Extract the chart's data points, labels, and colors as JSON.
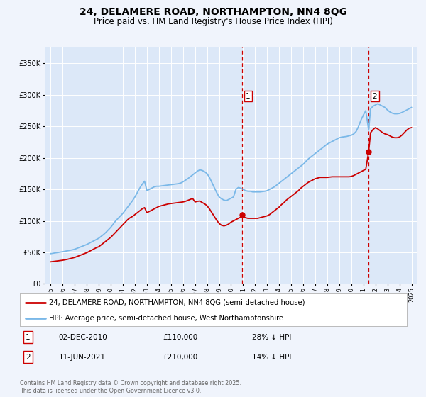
{
  "title": "24, DELAMERE ROAD, NORTHAMPTON, NN4 8QG",
  "subtitle": "Price paid vs. HM Land Registry's House Price Index (HPI)",
  "background_color": "#f0f4fc",
  "plot_bg_color": "#dce8f8",
  "legend_line1": "24, DELAMERE ROAD, NORTHAMPTON, NN4 8QG (semi-detached house)",
  "legend_line2": "HPI: Average price, semi-detached house, West Northamptonshire",
  "footer": "Contains HM Land Registry data © Crown copyright and database right 2025.\nThis data is licensed under the Open Government Licence v3.0.",
  "sale1_date": "02-DEC-2010",
  "sale1_price": "£110,000",
  "sale1_note": "28% ↓ HPI",
  "sale2_date": "11-JUN-2021",
  "sale2_price": "£210,000",
  "sale2_note": "14% ↓ HPI",
  "sale1_x": 2010.92,
  "sale1_y": 110000,
  "sale2_x": 2021.44,
  "sale2_y": 210000,
  "hpi_color": "#7ab8e8",
  "price_color": "#cc0000",
  "vline_color": "#cc0000",
  "ylim": [
    0,
    375000
  ],
  "xlim": [
    1994.5,
    2025.5
  ],
  "yticks": [
    0,
    50000,
    100000,
    150000,
    200000,
    250000,
    300000,
    350000
  ],
  "ytick_labels": [
    "£0",
    "£50K",
    "£100K",
    "£150K",
    "£200K",
    "£250K",
    "£300K",
    "£350K"
  ],
  "xticks": [
    1995,
    1996,
    1997,
    1998,
    1999,
    2000,
    2001,
    2002,
    2003,
    2004,
    2005,
    2006,
    2007,
    2008,
    2009,
    2010,
    2011,
    2012,
    2013,
    2014,
    2015,
    2016,
    2017,
    2018,
    2019,
    2020,
    2021,
    2022,
    2023,
    2024,
    2025
  ],
  "hpi_data": [
    [
      1995.0,
      48000
    ],
    [
      1995.1,
      48300
    ],
    [
      1995.2,
      48600
    ],
    [
      1995.3,
      49000
    ],
    [
      1995.4,
      49300
    ],
    [
      1995.5,
      49600
    ],
    [
      1995.6,
      49900
    ],
    [
      1995.7,
      50100
    ],
    [
      1995.8,
      50400
    ],
    [
      1995.9,
      50700
    ],
    [
      1996.0,
      51000
    ],
    [
      1996.2,
      51800
    ],
    [
      1996.4,
      52500
    ],
    [
      1996.6,
      53200
    ],
    [
      1996.8,
      54000
    ],
    [
      1997.0,
      55000
    ],
    [
      1997.2,
      56500
    ],
    [
      1997.4,
      58000
    ],
    [
      1997.6,
      59500
    ],
    [
      1997.8,
      61000
    ],
    [
      1998.0,
      62500
    ],
    [
      1998.2,
      64500
    ],
    [
      1998.4,
      66500
    ],
    [
      1998.6,
      68500
    ],
    [
      1998.8,
      70500
    ],
    [
      1999.0,
      72500
    ],
    [
      1999.2,
      75500
    ],
    [
      1999.4,
      78500
    ],
    [
      1999.6,
      82000
    ],
    [
      1999.8,
      86000
    ],
    [
      2000.0,
      90000
    ],
    [
      2000.2,
      95000
    ],
    [
      2000.4,
      100000
    ],
    [
      2000.6,
      104000
    ],
    [
      2000.8,
      108000
    ],
    [
      2001.0,
      112000
    ],
    [
      2001.2,
      117000
    ],
    [
      2001.4,
      122000
    ],
    [
      2001.6,
      127000
    ],
    [
      2001.8,
      132000
    ],
    [
      2002.0,
      138000
    ],
    [
      2002.2,
      145000
    ],
    [
      2002.4,
      152000
    ],
    [
      2002.6,
      158000
    ],
    [
      2002.8,
      163000
    ],
    [
      2003.0,
      148000
    ],
    [
      2003.2,
      150000
    ],
    [
      2003.4,
      152000
    ],
    [
      2003.6,
      154000
    ],
    [
      2003.8,
      155000
    ],
    [
      2004.0,
      155000
    ],
    [
      2004.2,
      155500
    ],
    [
      2004.4,
      156000
    ],
    [
      2004.6,
      156500
    ],
    [
      2004.8,
      157000
    ],
    [
      2005.0,
      157500
    ],
    [
      2005.2,
      158000
    ],
    [
      2005.4,
      158500
    ],
    [
      2005.6,
      159000
    ],
    [
      2005.8,
      160000
    ],
    [
      2006.0,
      162000
    ],
    [
      2006.2,
      164500
    ],
    [
      2006.4,
      167000
    ],
    [
      2006.6,
      170000
    ],
    [
      2006.8,
      173000
    ],
    [
      2007.0,
      176000
    ],
    [
      2007.2,
      179000
    ],
    [
      2007.4,
      181000
    ],
    [
      2007.6,
      180000
    ],
    [
      2007.8,
      178000
    ],
    [
      2008.0,
      175000
    ],
    [
      2008.2,
      169000
    ],
    [
      2008.4,
      161000
    ],
    [
      2008.6,
      153000
    ],
    [
      2008.8,
      145000
    ],
    [
      2009.0,
      138000
    ],
    [
      2009.2,
      135000
    ],
    [
      2009.4,
      133000
    ],
    [
      2009.6,
      132000
    ],
    [
      2009.8,
      134000
    ],
    [
      2010.0,
      136000
    ],
    [
      2010.2,
      138000
    ],
    [
      2010.4,
      150000
    ],
    [
      2010.6,
      153000
    ],
    [
      2010.8,
      152000
    ],
    [
      2011.0,
      150000
    ],
    [
      2011.2,
      148000
    ],
    [
      2011.4,
      147000
    ],
    [
      2011.6,
      147000
    ],
    [
      2011.8,
      146000
    ],
    [
      2012.0,
      146000
    ],
    [
      2012.2,
      146000
    ],
    [
      2012.4,
      146000
    ],
    [
      2012.6,
      146500
    ],
    [
      2012.8,
      147000
    ],
    [
      2013.0,
      148000
    ],
    [
      2013.2,
      150000
    ],
    [
      2013.4,
      152000
    ],
    [
      2013.6,
      154000
    ],
    [
      2013.8,
      157000
    ],
    [
      2014.0,
      160000
    ],
    [
      2014.2,
      163000
    ],
    [
      2014.4,
      166000
    ],
    [
      2014.6,
      169000
    ],
    [
      2014.8,
      172000
    ],
    [
      2015.0,
      175000
    ],
    [
      2015.2,
      178000
    ],
    [
      2015.4,
      181000
    ],
    [
      2015.6,
      184000
    ],
    [
      2015.8,
      187000
    ],
    [
      2016.0,
      190000
    ],
    [
      2016.2,
      194000
    ],
    [
      2016.4,
      198000
    ],
    [
      2016.6,
      201000
    ],
    [
      2016.8,
      204000
    ],
    [
      2017.0,
      207000
    ],
    [
      2017.2,
      210000
    ],
    [
      2017.4,
      213000
    ],
    [
      2017.6,
      216000
    ],
    [
      2017.8,
      219000
    ],
    [
      2018.0,
      222000
    ],
    [
      2018.2,
      224000
    ],
    [
      2018.4,
      226000
    ],
    [
      2018.6,
      228000
    ],
    [
      2018.8,
      230000
    ],
    [
      2019.0,
      232000
    ],
    [
      2019.2,
      233000
    ],
    [
      2019.4,
      233500
    ],
    [
      2019.6,
      234000
    ],
    [
      2019.8,
      235000
    ],
    [
      2020.0,
      236000
    ],
    [
      2020.2,
      238000
    ],
    [
      2020.4,
      242000
    ],
    [
      2020.6,
      250000
    ],
    [
      2020.8,
      260000
    ],
    [
      2021.0,
      268000
    ],
    [
      2021.2,
      275000
    ],
    [
      2021.44,
      244000
    ],
    [
      2021.6,
      278000
    ],
    [
      2021.8,
      282000
    ],
    [
      2022.0,
      284000
    ],
    [
      2022.2,
      286000
    ],
    [
      2022.4,
      284000
    ],
    [
      2022.6,
      282000
    ],
    [
      2022.8,
      280000
    ],
    [
      2023.0,
      276000
    ],
    [
      2023.2,
      273000
    ],
    [
      2023.4,
      271000
    ],
    [
      2023.6,
      270000
    ],
    [
      2023.8,
      270000
    ],
    [
      2024.0,
      270500
    ],
    [
      2024.2,
      272000
    ],
    [
      2024.4,
      274000
    ],
    [
      2024.6,
      276000
    ],
    [
      2024.8,
      278000
    ],
    [
      2025.0,
      280000
    ]
  ],
  "price_data": [
    [
      1995.0,
      35000
    ],
    [
      1995.2,
      35500
    ],
    [
      1995.4,
      36000
    ],
    [
      1995.6,
      36500
    ],
    [
      1995.8,
      37000
    ],
    [
      1996.0,
      37500
    ],
    [
      1996.2,
      38200
    ],
    [
      1996.4,
      39000
    ],
    [
      1996.6,
      40000
    ],
    [
      1996.8,
      41000
    ],
    [
      1997.0,
      42000
    ],
    [
      1997.2,
      43500
    ],
    [
      1997.4,
      45000
    ],
    [
      1997.6,
      46500
    ],
    [
      1997.8,
      48000
    ],
    [
      1998.0,
      49500
    ],
    [
      1998.2,
      51500
    ],
    [
      1998.4,
      53500
    ],
    [
      1998.6,
      55500
    ],
    [
      1998.8,
      57500
    ],
    [
      1999.0,
      59000
    ],
    [
      1999.2,
      62000
    ],
    [
      1999.4,
      65000
    ],
    [
      1999.6,
      68000
    ],
    [
      1999.8,
      71000
    ],
    [
      2000.0,
      74000
    ],
    [
      2000.2,
      78000
    ],
    [
      2000.4,
      82000
    ],
    [
      2000.6,
      86000
    ],
    [
      2000.8,
      90000
    ],
    [
      2001.0,
      94000
    ],
    [
      2001.2,
      98000
    ],
    [
      2001.4,
      102000
    ],
    [
      2001.6,
      105000
    ],
    [
      2001.8,
      107000
    ],
    [
      2002.0,
      110000
    ],
    [
      2002.2,
      113000
    ],
    [
      2002.4,
      116000
    ],
    [
      2002.6,
      119000
    ],
    [
      2002.8,
      121000
    ],
    [
      2003.0,
      113000
    ],
    [
      2003.2,
      115000
    ],
    [
      2003.4,
      117000
    ],
    [
      2003.6,
      119000
    ],
    [
      2003.8,
      121000
    ],
    [
      2004.0,
      123000
    ],
    [
      2004.2,
      124000
    ],
    [
      2004.4,
      125000
    ],
    [
      2004.6,
      126000
    ],
    [
      2004.8,
      127000
    ],
    [
      2005.0,
      127500
    ],
    [
      2005.2,
      128000
    ],
    [
      2005.4,
      128500
    ],
    [
      2005.6,
      129000
    ],
    [
      2005.8,
      129500
    ],
    [
      2006.0,
      130000
    ],
    [
      2006.2,
      131000
    ],
    [
      2006.4,
      132500
    ],
    [
      2006.6,
      134000
    ],
    [
      2006.8,
      135500
    ],
    [
      2007.0,
      130000
    ],
    [
      2007.2,
      131000
    ],
    [
      2007.4,
      131500
    ],
    [
      2007.6,
      129000
    ],
    [
      2007.8,
      127000
    ],
    [
      2008.0,
      124000
    ],
    [
      2008.2,
      119000
    ],
    [
      2008.4,
      113000
    ],
    [
      2008.6,
      107000
    ],
    [
      2008.8,
      101000
    ],
    [
      2009.0,
      96000
    ],
    [
      2009.2,
      93000
    ],
    [
      2009.4,
      92000
    ],
    [
      2009.6,
      93000
    ],
    [
      2009.8,
      95000
    ],
    [
      2010.0,
      98000
    ],
    [
      2010.2,
      100000
    ],
    [
      2010.4,
      102000
    ],
    [
      2010.6,
      104000
    ],
    [
      2010.8,
      106000
    ],
    [
      2010.92,
      110000
    ],
    [
      2011.0,
      107000
    ],
    [
      2011.2,
      105000
    ],
    [
      2011.4,
      104000
    ],
    [
      2011.6,
      104000
    ],
    [
      2011.8,
      104000
    ],
    [
      2012.0,
      104000
    ],
    [
      2012.2,
      104000
    ],
    [
      2012.4,
      105000
    ],
    [
      2012.6,
      106000
    ],
    [
      2012.8,
      107000
    ],
    [
      2013.0,
      108000
    ],
    [
      2013.2,
      110000
    ],
    [
      2013.4,
      113000
    ],
    [
      2013.6,
      116000
    ],
    [
      2013.8,
      119000
    ],
    [
      2014.0,
      122000
    ],
    [
      2014.2,
      126000
    ],
    [
      2014.4,
      129000
    ],
    [
      2014.6,
      133000
    ],
    [
      2014.8,
      136000
    ],
    [
      2015.0,
      139000
    ],
    [
      2015.2,
      142000
    ],
    [
      2015.4,
      145000
    ],
    [
      2015.6,
      148000
    ],
    [
      2015.8,
      152000
    ],
    [
      2016.0,
      155000
    ],
    [
      2016.2,
      158000
    ],
    [
      2016.4,
      161000
    ],
    [
      2016.6,
      163000
    ],
    [
      2016.8,
      165000
    ],
    [
      2017.0,
      167000
    ],
    [
      2017.2,
      168000
    ],
    [
      2017.4,
      169000
    ],
    [
      2017.6,
      169000
    ],
    [
      2017.8,
      169000
    ],
    [
      2018.0,
      169000
    ],
    [
      2018.2,
      169500
    ],
    [
      2018.4,
      170000
    ],
    [
      2018.6,
      170000
    ],
    [
      2018.8,
      170000
    ],
    [
      2019.0,
      170000
    ],
    [
      2019.2,
      170000
    ],
    [
      2019.4,
      170000
    ],
    [
      2019.6,
      170000
    ],
    [
      2019.8,
      170000
    ],
    [
      2020.0,
      170500
    ],
    [
      2020.2,
      172000
    ],
    [
      2020.4,
      174000
    ],
    [
      2020.6,
      176000
    ],
    [
      2020.8,
      178000
    ],
    [
      2021.0,
      180000
    ],
    [
      2021.2,
      182000
    ],
    [
      2021.44,
      210000
    ],
    [
      2021.6,
      240000
    ],
    [
      2021.8,
      245000
    ],
    [
      2022.0,
      248000
    ],
    [
      2022.2,
      246000
    ],
    [
      2022.4,
      243000
    ],
    [
      2022.6,
      240000
    ],
    [
      2022.8,
      238000
    ],
    [
      2023.0,
      237000
    ],
    [
      2023.2,
      235000
    ],
    [
      2023.4,
      233000
    ],
    [
      2023.6,
      232000
    ],
    [
      2023.8,
      232000
    ],
    [
      2024.0,
      233000
    ],
    [
      2024.2,
      236000
    ],
    [
      2024.4,
      240000
    ],
    [
      2024.6,
      244000
    ],
    [
      2024.8,
      247000
    ],
    [
      2025.0,
      248000
    ]
  ]
}
